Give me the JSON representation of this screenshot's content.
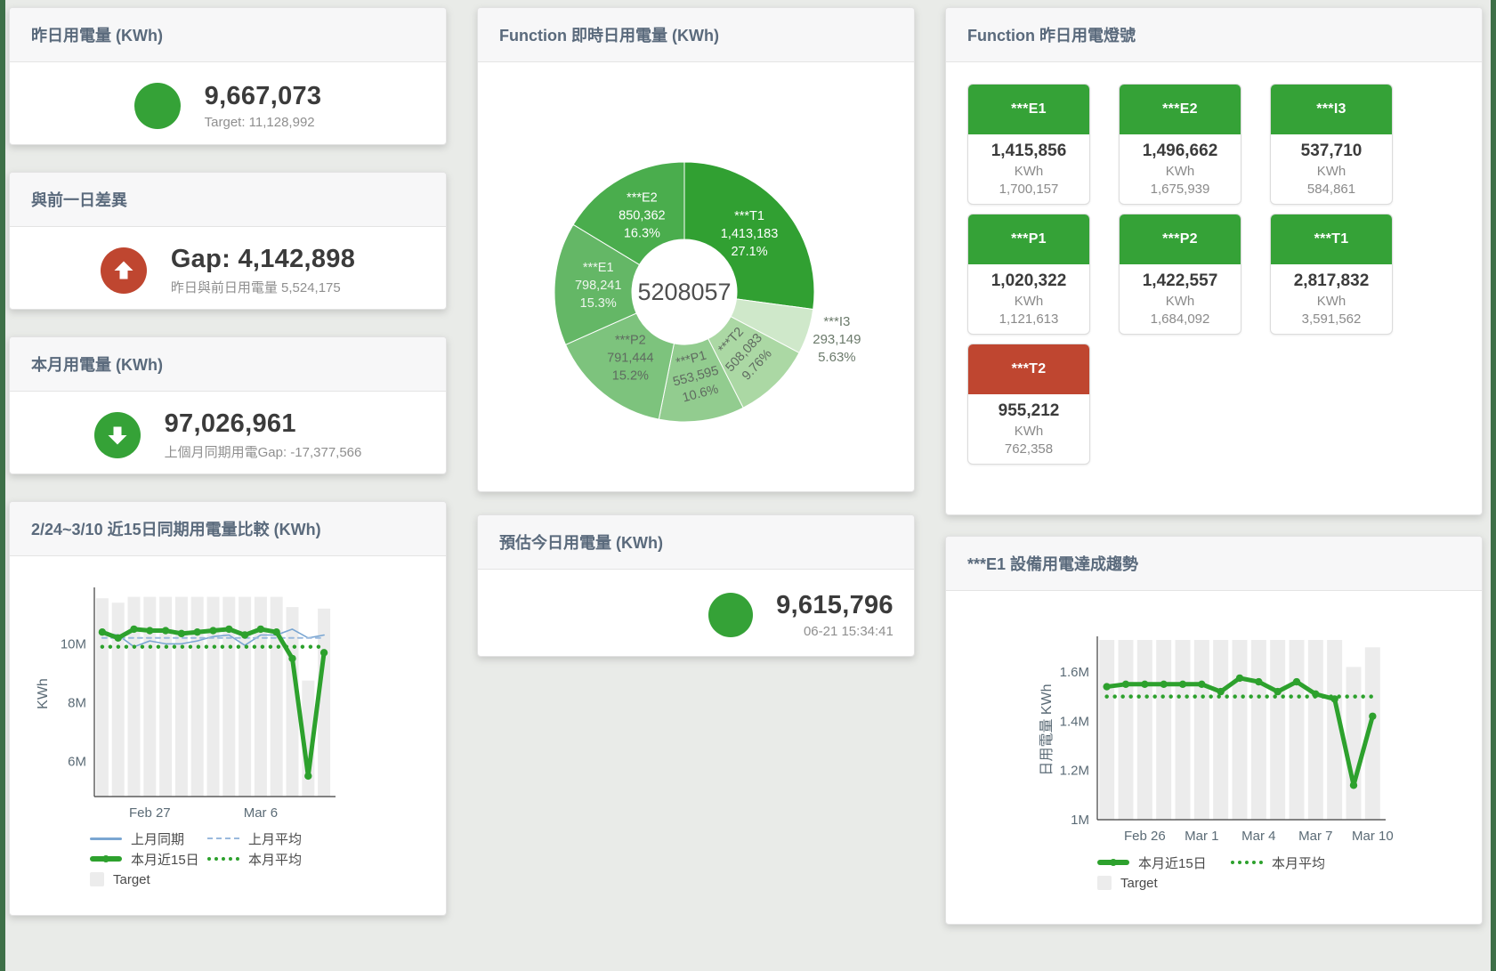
{
  "page": {
    "background": "#e9ebe8",
    "edge_accent_color": "#3e7048"
  },
  "cards": {
    "yesterday": {
      "title": "昨日用電量 (KWh)",
      "value": "9,667,073",
      "subtitle": "Target: 11,128,992",
      "status_color": "#35a237"
    },
    "gap": {
      "title": "與前一日差異",
      "value": "Gap: 4,142,898",
      "subtitle": "昨日與前日用電量 5,524,175",
      "status_color": "#bf4630",
      "direction": "up"
    },
    "month": {
      "title": "本月用電量 (KWh)",
      "value": "97,026,961",
      "subtitle": "上個月同期用電Gap: -17,377,566",
      "status_color": "#35a237",
      "direction": "down"
    },
    "estimate": {
      "title": "預估今日用電量 (KWh)",
      "value": "9,615,796",
      "subtitle": "06-21 15:34:41",
      "status_color": "#35a237"
    }
  },
  "lamp_card": {
    "title": "Function 昨日用電燈號",
    "unit": "KWh",
    "colors": {
      "green": "#35a237",
      "red": "#bf4630"
    },
    "tiles": [
      {
        "label": "***E1",
        "value": "1,415,856",
        "target": "1,700,157",
        "status": "green"
      },
      {
        "label": "***E2",
        "value": "1,496,662",
        "target": "1,675,939",
        "status": "green"
      },
      {
        "label": "***I3",
        "value": "537,710",
        "target": "584,861",
        "status": "green"
      },
      {
        "label": "***P1",
        "value": "1,020,322",
        "target": "1,121,613",
        "status": "green"
      },
      {
        "label": "***P2",
        "value": "1,422,557",
        "target": "1,684,092",
        "status": "green"
      },
      {
        "label": "***T1",
        "value": "2,817,832",
        "target": "3,591,562",
        "status": "green"
      },
      {
        "label": "***T2",
        "value": "955,212",
        "target": "762,358",
        "status": "red"
      }
    ]
  },
  "chart_data": [
    {
      "type": "pie",
      "title": "Function 即時日用電量 (KWh)",
      "center_label": "5208057",
      "unit": "KWh",
      "slices": [
        {
          "name": "***T1",
          "value": 1413183,
          "pct": "27.1%",
          "color": "#31a032",
          "label_color": "#ffffff",
          "label_pos": "inside",
          "rot": 0
        },
        {
          "name": "***I3",
          "value": 293149,
          "pct": "5.63%",
          "color": "#cfe8ca",
          "label_color": "#6b7a6b",
          "label_pos": "outside",
          "rot": 0
        },
        {
          "name": "***T2",
          "value": 508083,
          "pct": "9.76%",
          "color": "#abd8a4",
          "label_color": "#5f6b60",
          "label_pos": "inside",
          "rot": -47
        },
        {
          "name": "***P1",
          "value": 553595,
          "pct": "10.6%",
          "color": "#92cc8f",
          "label_color": "#5f6b60",
          "label_pos": "inside",
          "rot": -15
        },
        {
          "name": "***P2",
          "value": 791444,
          "pct": "15.2%",
          "color": "#7dc37d",
          "label_color": "#5f6b60",
          "label_pos": "inside",
          "rot": 0
        },
        {
          "name": "***E1",
          "value": 798241,
          "pct": "15.3%",
          "color": "#64b766",
          "label_color": "#eef6ee",
          "label_pos": "inside",
          "rot": 0
        },
        {
          "name": "***E2",
          "value": 850362,
          "pct": "16.3%",
          "color": "#4aad4d",
          "label_color": "#ffffff",
          "label_pos": "inside",
          "rot": 0
        }
      ]
    },
    {
      "type": "line",
      "title": "2/24~3/10 近15日同期用電量比較 (KWh)",
      "ylabel": "KWh",
      "ylim": [
        4800000,
        11800000
      ],
      "yticks": [
        {
          "v": 6000000,
          "label": "6M"
        },
        {
          "v": 8000000,
          "label": "8M"
        },
        {
          "v": 10000000,
          "label": "10M"
        }
      ],
      "xticks": [
        {
          "i": 3,
          "label": "Feb 27"
        },
        {
          "i": 10,
          "label": "Mar 6"
        }
      ],
      "bars": {
        "name": "Target",
        "color": "#ececec",
        "values": [
          11550000,
          11400000,
          11600000,
          11600000,
          11600000,
          11600000,
          11600000,
          11600000,
          11600000,
          11600000,
          11600000,
          11600000,
          11250000,
          8750000,
          11200000
        ]
      },
      "series": [
        {
          "name": "上月同期",
          "color": "#7aa6d2",
          "width": 1.6,
          "dash": "",
          "markers": false,
          "values": [
            10350000,
            10300000,
            9900000,
            10100000,
            10000000,
            10000000,
            10100000,
            10250000,
            10300000,
            9950000,
            10300000,
            10300000,
            10500000,
            10200000,
            10300000
          ]
        },
        {
          "name": "上月平均",
          "color": "#9ab9dd",
          "width": 2,
          "dash": "5 5",
          "markers": false,
          "constant": 10200000
        },
        {
          "name": "本月近15日",
          "color": "#2da12d",
          "width": 5,
          "dash": "",
          "markers": true,
          "values": [
            10400000,
            10200000,
            10500000,
            10450000,
            10450000,
            10350000,
            10400000,
            10450000,
            10500000,
            10300000,
            10500000,
            10400000,
            9500000,
            5500000,
            9700000
          ]
        },
        {
          "name": "本月平均",
          "color": "#2da12d",
          "width": 4.5,
          "dash": "0 9",
          "markers": false,
          "constant": 9900000
        }
      ]
    },
    {
      "type": "line",
      "title": "***E1 設備用電達成趨勢",
      "ylabel": "日用電量 KWh",
      "ylim": [
        1000000,
        1730000
      ],
      "yticks": [
        {
          "v": 1000000,
          "label": "1M"
        },
        {
          "v": 1200000,
          "label": "1.2M"
        },
        {
          "v": 1400000,
          "label": "1.4M"
        },
        {
          "v": 1600000,
          "label": "1.6M"
        }
      ],
      "xticks": [
        {
          "i": 2,
          "label": "Feb 26"
        },
        {
          "i": 5,
          "label": "Mar 1"
        },
        {
          "i": 8,
          "label": "Mar 4"
        },
        {
          "i": 11,
          "label": "Mar 7"
        },
        {
          "i": 14,
          "label": "Mar 10"
        }
      ],
      "bars": {
        "name": "Target",
        "color": "#ececec",
        "values": [
          1730000,
          1730000,
          1730000,
          1730000,
          1730000,
          1730000,
          1730000,
          1730000,
          1730000,
          1730000,
          1730000,
          1730000,
          1730000,
          1620000,
          1700000
        ]
      },
      "series": [
        {
          "name": "本月近15日",
          "color": "#2da12d",
          "width": 5,
          "dash": "",
          "markers": true,
          "values": [
            1540000,
            1550000,
            1550000,
            1550000,
            1550000,
            1550000,
            1520000,
            1575000,
            1560000,
            1520000,
            1560000,
            1510000,
            1490000,
            1140000,
            1420000
          ]
        },
        {
          "name": "本月平均",
          "color": "#2da12d",
          "width": 4.5,
          "dash": "0 9",
          "markers": false,
          "constant": 1500000
        }
      ]
    }
  ]
}
